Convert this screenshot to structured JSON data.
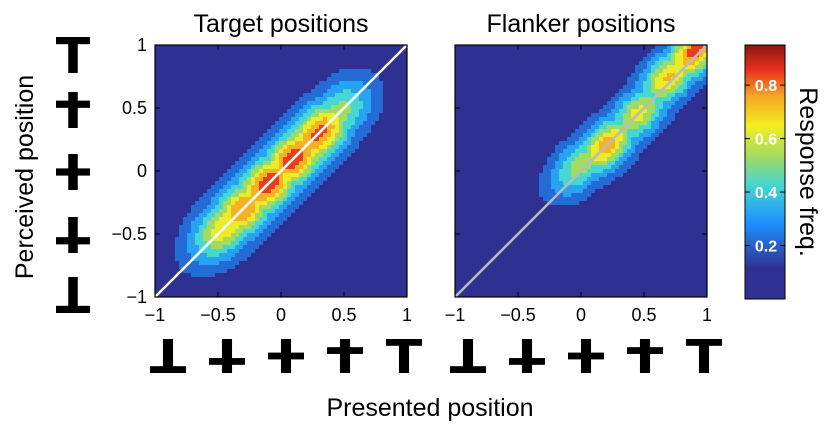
{
  "chart_data": [
    {
      "type": "heatmap",
      "title": "Target positions",
      "xlabel": "Presented position",
      "ylabel": "Perceived position",
      "xlim": [
        -1,
        1
      ],
      "ylim": [
        -1,
        1
      ],
      "x_ticks": [
        "−1",
        "−0.5",
        "0",
        "0.5",
        "1"
      ],
      "y_ticks": [
        "1",
        "0.5",
        "0",
        "−0.5",
        "−1"
      ],
      "colorscale": "jet",
      "identity_line_color": "#ffffff",
      "density_ridge": {
        "description_points": [
          {
            "x": -0.45,
            "y": -0.45,
            "value": 0.65
          },
          {
            "x": -0.3,
            "y": -0.3,
            "value": 0.8
          },
          {
            "x": -0.1,
            "y": -0.1,
            "value": 0.9
          },
          {
            "x": 0.1,
            "y": 0.1,
            "value": 0.9
          },
          {
            "x": 0.3,
            "y": 0.3,
            "value": 0.85
          },
          {
            "x": 0.45,
            "y": 0.45,
            "value": 0.5
          }
        ],
        "spread_along": 0.65,
        "spread_across": 0.13
      }
    },
    {
      "type": "heatmap",
      "title": "Flanker positions",
      "xlabel": "Presented position",
      "xlim": [
        -1,
        1
      ],
      "ylim": [
        -1,
        1
      ],
      "x_ticks": [
        "−1",
        "−0.5",
        "0",
        "0.5",
        "1"
      ],
      "colorscale": "jet",
      "identity_line_color": "#bbbbbb",
      "density_ridge": {
        "description_points": [
          {
            "x": 0.0,
            "y": 0.05,
            "value": 0.5
          },
          {
            "x": 0.2,
            "y": 0.2,
            "value": 0.75
          },
          {
            "x": 0.45,
            "y": 0.45,
            "value": 0.6
          },
          {
            "x": 0.7,
            "y": 0.75,
            "value": 0.7
          },
          {
            "x": 0.9,
            "y": 0.95,
            "value": 0.85
          }
        ],
        "spread_along": 0.6,
        "spread_across": 0.11
      }
    }
  ],
  "colorbar": {
    "label": "Response freq.",
    "ticks": [
      "0.8",
      "0.6",
      "0.4",
      "0.2"
    ],
    "tick_values": [
      0.8,
      0.6,
      0.4,
      0.2
    ],
    "range": [
      0,
      0.95
    ]
  },
  "shared": {
    "xlabel": "Presented position",
    "ylabel": "Perceived position"
  },
  "glyph_icons": [
    "t-tee-icon",
    "cross-high-icon",
    "cross-mid-icon",
    "cross-low-icon",
    "inverted-tee-icon"
  ]
}
